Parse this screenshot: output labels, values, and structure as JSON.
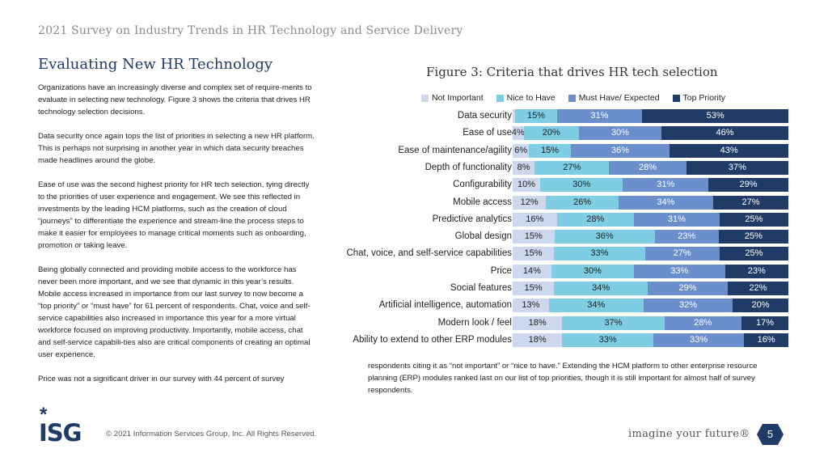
{
  "header": {
    "title": "2021 Survey on Industry Trends in HR Technology and Service Delivery"
  },
  "section": {
    "title": "Evaluating New HR Technology"
  },
  "body": {
    "paragraphs": [
      "Organizations have an increasingly diverse and complex set of require-ments to evaluate in selecting new technology. Figure 3 shows the criteria that drives HR technology selection decisions.",
      "Data security once again tops the list of priorities in selecting a new HR platform. This is perhaps not surprising in another year in which data security breaches made headlines around the globe.",
      "Ease of use was the second highest priority for HR tech selection, tying directly to the priorities of user experience and engagement. We see this reflected in investments by the leading HCM platforms, such as the creation of cloud “journeys” to differentiate the experience and stream-line the process steps to make it easier for employees to manage critical moments such as onboarding, promotion or taking leave.",
      "Being globally connected and providing mobile access to the workforce has never been more important, and we see that dynamic in this year’s results. Mobile access increased in importance from our last survey to now become a “top priority” or “must have” for 61 percent of respondents. Chat, voice and self-service capabilities also increased in importance this year for a more virtual workforce focused on improving productivity. Importantly, mobile access, chat and self-service capabili-ties also are critical components of creating an optimal user experience.",
      "Price was not a significant driver in our survey with 44 percent of survey"
    ],
    "continuation": "respondents citing it as “not important” or “nice to have.” Extending the HCM platform to other enterprise resource planning (ERP) modules ranked last on our list of top priorities, though it is still important for almost half of survey respondents."
  },
  "figure": {
    "title": "Figure 3: Criteria that drives HR tech selection"
  },
  "chart_data": {
    "type": "bar",
    "orientation": "horizontal-stacked-100",
    "legend_position": "top",
    "categories": [
      "Data security",
      "Ease of use",
      "Ease of maintenance/agility",
      "Depth of functionality",
      "Configurability",
      "Mobile access",
      "Predictive analytics",
      "Global design",
      "Chat, voice, and self-service capabilities",
      "Price",
      "Social features",
      "Artificial intelligence, automation",
      "Modern look / feel",
      "Ability to extend to other ERP modules"
    ],
    "series": [
      {
        "name": "Not Important",
        "color": "#cdd8ee",
        "label_color": "#222222",
        "values": [
          1,
          4,
          6,
          8,
          10,
          12,
          16,
          15,
          15,
          14,
          15,
          13,
          18,
          18
        ],
        "labels": [
          "",
          "4%",
          "6%",
          "8%",
          "10%",
          "12%",
          "16%",
          "15%",
          "15%",
          "14%",
          "15%",
          "13%",
          "18%",
          "18%"
        ]
      },
      {
        "name": "Nice to Have",
        "color": "#7fcde3",
        "label_color": "#222222",
        "values": [
          15,
          20,
          15,
          27,
          30,
          26,
          28,
          36,
          33,
          30,
          34,
          34,
          37,
          33
        ],
        "labels": [
          "15%",
          "20%",
          "15%",
          "27%",
          "30%",
          "26%",
          "28%",
          "36%",
          "33%",
          "30%",
          "34%",
          "34%",
          "37%",
          "33%"
        ]
      },
      {
        "name": "Must Have/ Expected",
        "color": "#6b8fcd",
        "label_color": "#ffffff",
        "values": [
          31,
          30,
          36,
          28,
          31,
          34,
          31,
          23,
          27,
          33,
          29,
          32,
          28,
          33
        ],
        "labels": [
          "31%",
          "30%",
          "36%",
          "28%",
          "31%",
          "34%",
          "31%",
          "23%",
          "27%",
          "33%",
          "29%",
          "32%",
          "28%",
          "33%"
        ]
      },
      {
        "name": "Top Priority",
        "color": "#1f3b66",
        "label_color": "#ffffff",
        "values": [
          53,
          46,
          43,
          37,
          29,
          27,
          25,
          25,
          25,
          23,
          22,
          20,
          17,
          16
        ],
        "labels": [
          "53%",
          "46%",
          "43%",
          "37%",
          "29%",
          "27%",
          "25%",
          "25%",
          "25%",
          "23%",
          "22%",
          "20%",
          "17%",
          "16%"
        ]
      }
    ],
    "grid": false
  },
  "footer": {
    "logo_mark": "*",
    "logo_text": "ISG",
    "copyright": "© 2021 Information Services Group, Inc. All Rights Reserved.",
    "tagline": "imagine your future®",
    "page_number": "5",
    "badge_color": "#1f3b66"
  }
}
